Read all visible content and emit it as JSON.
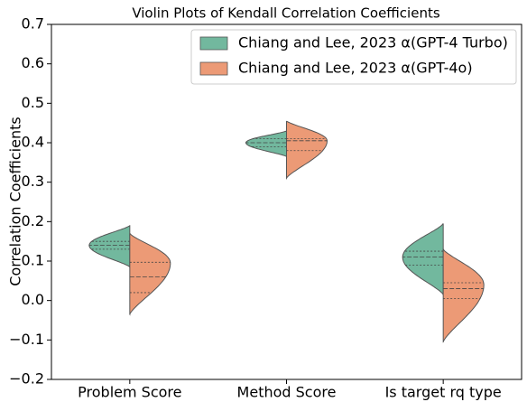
{
  "chart_data": {
    "type": "violin",
    "title": "Violin Plots of Kendall Correlation Coefficients",
    "y_label": "Correlation Coefficients",
    "categories": [
      "Problem Score",
      "Method Score",
      "Is target rq type"
    ],
    "ylim": [
      -0.2,
      0.7
    ],
    "yticks": [
      {
        "value": -0.2,
        "label": "−0.2"
      },
      {
        "value": -0.1,
        "label": "−0.1"
      },
      {
        "value": 0,
        "label": "0.0"
      },
      0.1,
      0.2,
      0.3,
      0.4,
      0.5,
      0.6,
      0.7
    ],
    "legend": "upper right",
    "series": [
      {
        "name": "Chiang and Lee, 2023 α(GPT-4 Turbo)",
        "color": "#72b89e",
        "violins": [
          {
            "min": 0.085,
            "q1": 0.13,
            "median": 0.14,
            "q3": 0.15,
            "max": 0.19,
            "peak": 0.14
          },
          {
            "min": 0.365,
            "q1": 0.39,
            "median": 0.4,
            "q3": 0.41,
            "max": 0.43,
            "peak": 0.4
          },
          {
            "min": 0.015,
            "q1": 0.09,
            "median": 0.11,
            "q3": 0.125,
            "max": 0.195,
            "peak": 0.11
          }
        ]
      },
      {
        "name": "Chiang and Lee, 2023 α(GPT-4o)",
        "color": "#ec9a76",
        "violins": [
          {
            "min": -0.035,
            "q1": 0.02,
            "median": 0.06,
            "q3": 0.097,
            "max": 0.17,
            "peak": 0.095
          },
          {
            "min": 0.31,
            "q1": 0.38,
            "median": 0.405,
            "q3": 0.41,
            "max": 0.455,
            "peak": 0.405
          },
          {
            "min": -0.105,
            "q1": 0.005,
            "median": 0.03,
            "q3": 0.045,
            "max": 0.13,
            "peak": 0.04
          }
        ]
      }
    ]
  }
}
